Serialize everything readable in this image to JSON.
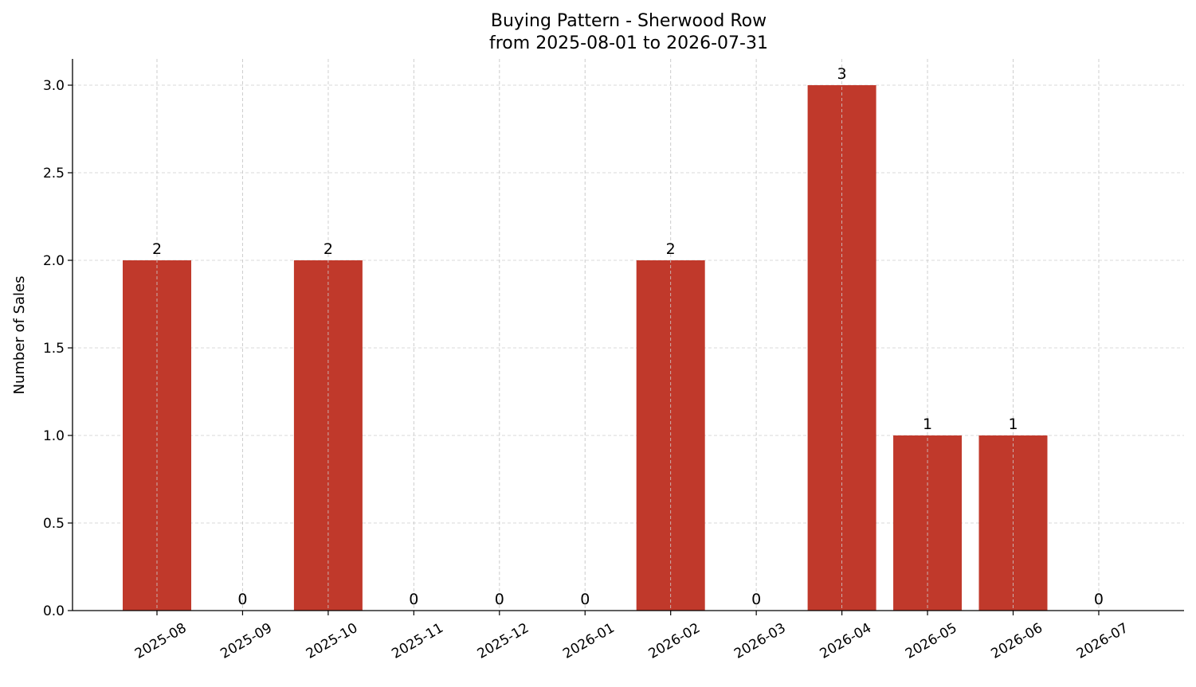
{
  "chart_data": {
    "type": "bar",
    "title": "Buying Pattern - Sherwood Row",
    "subtitle": "from 2025-08-01 to 2026-07-31",
    "xlabel": "",
    "ylabel": "Number of Sales",
    "categories": [
      "2025-08",
      "2025-09",
      "2025-10",
      "2025-11",
      "2025-12",
      "2026-01",
      "2026-02",
      "2026-03",
      "2026-04",
      "2026-05",
      "2026-06",
      "2026-07"
    ],
    "values": [
      2,
      0,
      2,
      0,
      0,
      0,
      2,
      0,
      3,
      1,
      1,
      0
    ],
    "data_labels": [
      "2",
      "0",
      "2",
      "0",
      "0",
      "0",
      "2",
      "0",
      "3",
      "1",
      "1",
      "0"
    ],
    "ylim": [
      0,
      3.15
    ],
    "yticks": [
      0.0,
      0.5,
      1.0,
      1.5,
      2.0,
      2.5,
      3.0
    ],
    "ytick_labels": [
      "0.0",
      "0.5",
      "1.0",
      "1.5",
      "2.0",
      "2.5",
      "3.0"
    ],
    "grid": true,
    "bar_color": "#c0392b",
    "grid_color": "#cccccc"
  }
}
